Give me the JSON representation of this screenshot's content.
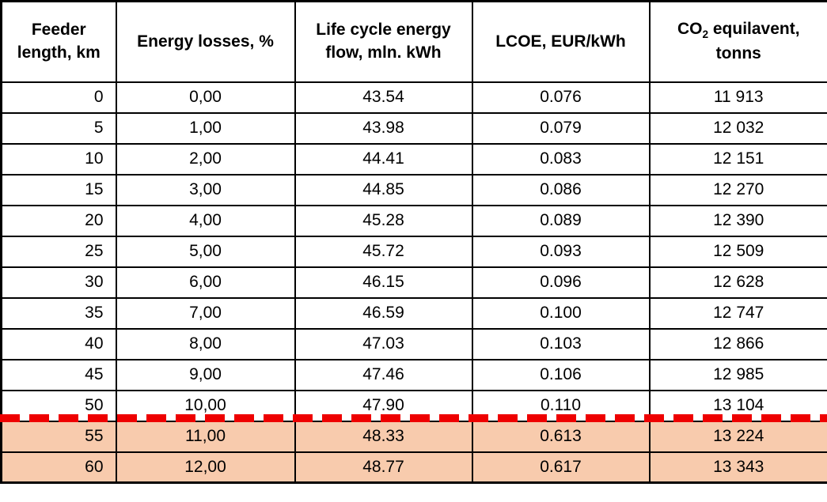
{
  "colors": {
    "highlight_row_background": "#f8cbad",
    "separator_red": "#ee0000",
    "border": "#000000",
    "text": "#000000"
  },
  "table": {
    "column_keys": [
      "feeder-length",
      "energy-losses",
      "life-cycle-energy-flow",
      "lcoe",
      "co2-equivalent"
    ],
    "headers": {
      "feeder_length": "Feeder length, km",
      "energy_losses": "Energy losses, %",
      "life_cycle_energy_flow": "Life cycle energy flow, mln. kWh",
      "lcoe": "LCOE, EUR/kWh",
      "co2": {
        "base": "CO",
        "subscript": "2",
        "rest": " equilavent, tonns"
      }
    },
    "rows": [
      {
        "highlighted": false,
        "cells": [
          "0",
          "0,00",
          "43.54",
          "0.076",
          "11 913"
        ]
      },
      {
        "highlighted": false,
        "cells": [
          "5",
          "1,00",
          "43.98",
          "0.079",
          "12 032"
        ]
      },
      {
        "highlighted": false,
        "cells": [
          "10",
          "2,00",
          "44.41",
          "0.083",
          "12 151"
        ]
      },
      {
        "highlighted": false,
        "cells": [
          "15",
          "3,00",
          "44.85",
          "0.086",
          "12 270"
        ]
      },
      {
        "highlighted": false,
        "cells": [
          "20",
          "4,00",
          "45.28",
          "0.089",
          "12 390"
        ]
      },
      {
        "highlighted": false,
        "cells": [
          "25",
          "5,00",
          "45.72",
          "0.093",
          "12 509"
        ]
      },
      {
        "highlighted": false,
        "cells": [
          "30",
          "6,00",
          "46.15",
          "0.096",
          "12 628"
        ]
      },
      {
        "highlighted": false,
        "cells": [
          "35",
          "7,00",
          "46.59",
          "0.100",
          "12 747"
        ]
      },
      {
        "highlighted": false,
        "cells": [
          "40",
          "8,00",
          "47.03",
          "0.103",
          "12 866"
        ]
      },
      {
        "highlighted": false,
        "cells": [
          "45",
          "9,00",
          "47.46",
          "0.106",
          "12 985"
        ]
      },
      {
        "highlighted": false,
        "cells": [
          "50",
          "10,00",
          "47.90",
          "0.110",
          "13 104"
        ]
      },
      {
        "highlighted": true,
        "cells": [
          "55",
          "11,00",
          "48.33",
          "0.613",
          "13 224"
        ]
      },
      {
        "highlighted": true,
        "cells": [
          "60",
          "12,00",
          "48.77",
          "0.617",
          "13 343"
        ]
      }
    ],
    "separator": {
      "type": "red-dashed-line",
      "after_row_with_value": "50",
      "before_row_with_value": "55"
    }
  }
}
